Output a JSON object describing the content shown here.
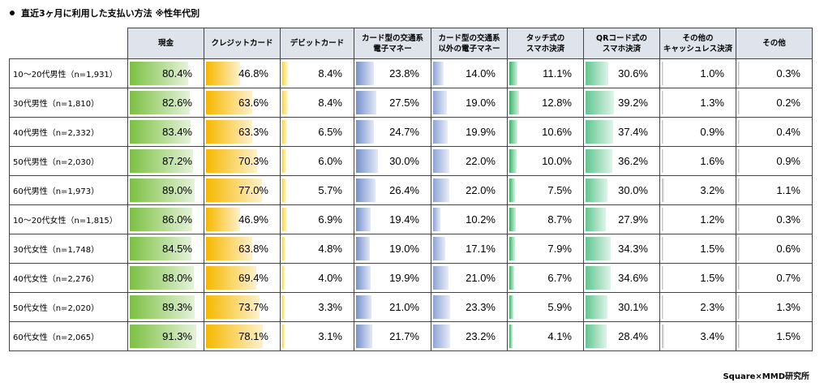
{
  "title": "直近3ヶ月に利用した支払い方法 ※性年代別",
  "credit": "Square×MMD研究所",
  "chart_data": {
    "type": "table",
    "columns": [
      {
        "line1": "現金",
        "line2": "",
        "color": "#7cc043"
      },
      {
        "line1": "クレジットカード",
        "line2": "",
        "color": "#f6b800"
      },
      {
        "line1": "デビットカード",
        "line2": "",
        "color": "#f9d64c"
      },
      {
        "line1": "カード型の交通系",
        "line2": "電子マネー",
        "color": "#7591cc"
      },
      {
        "line1": "カード型の交通系",
        "line2": "以外の電子マネー",
        "color": "#8ea5d6"
      },
      {
        "line1": "タッチ式の",
        "line2": "スマホ決済",
        "color": "#3cb46a"
      },
      {
        "line1": "QRコード式の",
        "line2": "スマホ決済",
        "color": "#62c590"
      },
      {
        "line1": "その他の",
        "line2": "キャッシュレス決済",
        "color": "#b8b8b8"
      },
      {
        "line1": "その他",
        "line2": "",
        "color": "#b8b8b8"
      }
    ],
    "rows": [
      {
        "label": "10～20代男性（n=1,931）",
        "values": [
          80.4,
          46.8,
          8.4,
          23.8,
          14.0,
          11.1,
          30.6,
          1.0,
          0.3
        ]
      },
      {
        "label": "30代男性（n=1,810）",
        "values": [
          82.6,
          63.6,
          8.4,
          27.5,
          19.0,
          12.8,
          39.2,
          1.3,
          0.2
        ]
      },
      {
        "label": "40代男性（n=2,332）",
        "values": [
          83.4,
          63.3,
          6.5,
          24.7,
          19.9,
          10.6,
          37.4,
          0.9,
          0.4
        ]
      },
      {
        "label": "50代男性（n=2,030）",
        "values": [
          87.2,
          70.3,
          6.0,
          30.0,
          22.0,
          10.0,
          36.2,
          1.6,
          0.9
        ]
      },
      {
        "label": "60代男性（n=1,973）",
        "values": [
          89.0,
          77.0,
          5.7,
          26.4,
          22.0,
          7.5,
          30.0,
          3.2,
          1.1
        ]
      },
      {
        "label": "10～20代女性（n=1,815）",
        "values": [
          86.0,
          46.9,
          6.9,
          19.4,
          10.2,
          8.7,
          27.9,
          1.2,
          0.3
        ]
      },
      {
        "label": "30代女性（n=1,748）",
        "values": [
          84.5,
          63.8,
          4.8,
          19.0,
          17.1,
          7.9,
          34.3,
          1.5,
          0.6
        ]
      },
      {
        "label": "40代女性（n=2,276）",
        "values": [
          88.0,
          69.4,
          4.0,
          19.9,
          21.0,
          6.7,
          34.6,
          1.5,
          0.7
        ]
      },
      {
        "label": "50代女性（n=2,020）",
        "values": [
          89.3,
          73.7,
          3.3,
          21.0,
          23.3,
          5.9,
          30.1,
          2.3,
          1.3
        ]
      },
      {
        "label": "60代女性（n=2,065）",
        "values": [
          91.3,
          78.1,
          3.1,
          21.7,
          23.2,
          4.1,
          28.4,
          3.4,
          1.5
        ]
      }
    ],
    "value_unit": "%",
    "value_range": [
      0,
      100
    ]
  }
}
